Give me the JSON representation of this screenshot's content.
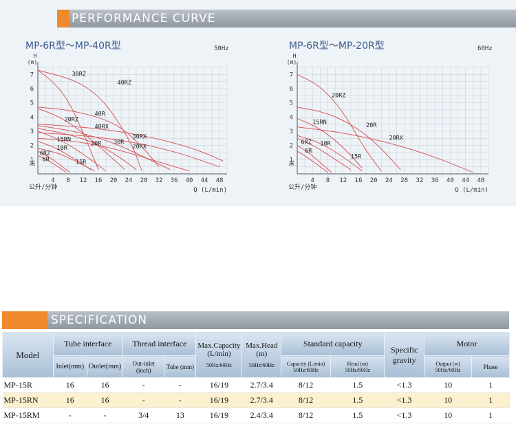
{
  "performance": {
    "title": "PERFORMANCE CURVE",
    "left_chart": {
      "title": "MP-6R型～MP-40R型",
      "hz": "50Hz",
      "y_axis_label_top": "H",
      "y_axis_label_unit": "(m)",
      "y_axis_label_side": "米",
      "x_axis_label_unit": "公升/分钟",
      "x_axis_label": "Q (L/min)",
      "y_ticks": [
        "1",
        "2",
        "3",
        "4",
        "5",
        "6",
        "7"
      ],
      "x_ticks": [
        "4",
        "8",
        "12",
        "16",
        "20",
        "24",
        "28",
        "32",
        "36",
        "40",
        "44",
        "48"
      ],
      "curve_labels": [
        "30RZ",
        "40RZ",
        "40R",
        "20RZ",
        "40RX",
        "15RN",
        "20R",
        "30R",
        "30RX",
        "10R",
        "20RX",
        "6RZ",
        "6R",
        "15R"
      ]
    },
    "right_chart": {
      "title": "MP-6R型～MP-20R型",
      "hz": "60Hz",
      "y_axis_label_top": "H",
      "y_axis_label_unit": "(m)",
      "y_axis_label_side": "米",
      "x_axis_label_unit": "公升/分钟",
      "x_axis_label": "Q (L/min)",
      "y_ticks": [
        "1",
        "2",
        "3",
        "4",
        "5",
        "6",
        "7"
      ],
      "x_ticks": [
        "4",
        "8",
        "12",
        "16",
        "20",
        "24",
        "28",
        "32",
        "36",
        "40",
        "44",
        "48"
      ],
      "curve_labels": [
        "20RZ",
        "15RN",
        "20R",
        "20RX",
        "6RZ",
        "10R",
        "6R",
        "15R"
      ]
    }
  },
  "chart_data": [
    {
      "type": "line",
      "title": "MP-6R型～MP-40R型",
      "hz": "50Hz",
      "xlabel": "Q (L/min)",
      "ylabel": "H (m)",
      "xlim": [
        0,
        50
      ],
      "ylim": [
        0,
        7.5
      ],
      "x_ticks": [
        4,
        8,
        12,
        16,
        20,
        24,
        28,
        32,
        36,
        40,
        44,
        48
      ],
      "y_ticks": [
        1,
        2,
        3,
        4,
        5,
        6,
        7
      ],
      "grid": true,
      "series": [
        {
          "name": "30RZ",
          "x": [
            0,
            4,
            8,
            12,
            16
          ],
          "y": [
            7.3,
            6.5,
            5.2,
            2.9,
            0.3
          ]
        },
        {
          "name": "40RZ",
          "x": [
            0,
            10,
            16,
            20,
            25,
            27.5
          ],
          "y": [
            7.3,
            6.6,
            5.5,
            4.2,
            2.0,
            0.2
          ]
        },
        {
          "name": "40R",
          "x": [
            0,
            8,
            16,
            22,
            28,
            32
          ],
          "y": [
            4.7,
            4.5,
            4.0,
            3.3,
            1.8,
            0.5
          ]
        },
        {
          "name": "20RZ",
          "x": [
            0,
            6,
            12,
            18,
            23
          ],
          "y": [
            4.6,
            4.0,
            2.9,
            1.5,
            0.3
          ]
        },
        {
          "name": "40RX",
          "x": [
            0,
            12,
            24,
            36,
            44,
            49
          ],
          "y": [
            3.5,
            3.3,
            2.9,
            2.2,
            1.5,
            0.9
          ]
        },
        {
          "name": "15RN",
          "x": [
            0,
            6,
            12,
            18
          ],
          "y": [
            3.0,
            2.4,
            1.4,
            0.2
          ]
        },
        {
          "name": "20R",
          "x": [
            0,
            8,
            16,
            22,
            26
          ],
          "y": [
            3.2,
            2.8,
            2.1,
            1.1,
            0.3
          ]
        },
        {
          "name": "30R",
          "x": [
            0,
            10,
            20,
            28,
            35
          ],
          "y": [
            3.4,
            3.0,
            2.2,
            1.2,
            0.3
          ]
        },
        {
          "name": "30RX",
          "x": [
            0,
            12,
            24,
            36,
            48
          ],
          "y": [
            2.9,
            2.7,
            2.3,
            1.6,
            0.5
          ]
        },
        {
          "name": "10R",
          "x": [
            0,
            5,
            10,
            14
          ],
          "y": [
            2.3,
            1.8,
            1.0,
            0.3
          ]
        },
        {
          "name": "20RX",
          "x": [
            0,
            10,
            20,
            30,
            40
          ],
          "y": [
            2.5,
            2.3,
            1.8,
            1.0,
            0.2
          ]
        },
        {
          "name": "6RZ",
          "x": [
            0,
            3,
            6,
            8.5
          ],
          "y": [
            1.6,
            1.2,
            0.6,
            0.1
          ]
        },
        {
          "name": "6R",
          "x": [
            0,
            3,
            6,
            7.5
          ],
          "y": [
            1.3,
            0.9,
            0.4,
            0.1
          ]
        },
        {
          "name": "15R",
          "x": [
            0,
            5,
            10,
            15
          ],
          "y": [
            1.8,
            1.5,
            0.9,
            0.2
          ]
        }
      ]
    },
    {
      "type": "line",
      "title": "MP-6R型～MP-20R型",
      "hz": "60Hz",
      "xlabel": "Q (L/min)",
      "ylabel": "H (m)",
      "xlim": [
        0,
        50
      ],
      "ylim": [
        0,
        7.5
      ],
      "x_ticks": [
        4,
        8,
        12,
        16,
        20,
        24,
        28,
        32,
        36,
        40,
        44,
        48
      ],
      "y_ticks": [
        1,
        2,
        3,
        4,
        5,
        6,
        7
      ],
      "grid": true,
      "series": [
        {
          "name": "20RZ",
          "x": [
            0,
            6,
            12,
            18,
            22
          ],
          "y": [
            7.0,
            6.2,
            4.4,
            1.6,
            0.2
          ]
        },
        {
          "name": "15RN",
          "x": [
            0,
            6,
            12,
            17
          ],
          "y": [
            3.9,
            3.2,
            1.9,
            0.4
          ]
        },
        {
          "name": "20R",
          "x": [
            0,
            8,
            16,
            22,
            27
          ],
          "y": [
            4.7,
            4.3,
            3.2,
            1.8,
            0.3
          ]
        },
        {
          "name": "20RX",
          "x": [
            0,
            12,
            24,
            36,
            46
          ],
          "y": [
            3.3,
            2.9,
            2.2,
            1.2,
            0.1
          ]
        },
        {
          "name": "6RZ",
          "x": [
            0,
            3,
            6,
            9
          ],
          "y": [
            2.0,
            1.5,
            0.8,
            0.1
          ]
        },
        {
          "name": "10R",
          "x": [
            0,
            5,
            10,
            14
          ],
          "y": [
            2.5,
            1.9,
            1.0,
            0.3
          ]
        },
        {
          "name": "6R",
          "x": [
            0,
            3,
            6,
            8
          ],
          "y": [
            1.6,
            1.1,
            0.5,
            0.1
          ]
        },
        {
          "name": "15R",
          "x": [
            0,
            6,
            12,
            17
          ],
          "y": [
            2.7,
            2.2,
            1.2,
            0.2
          ]
        }
      ]
    }
  ],
  "specification": {
    "title": "SPECIFICATION",
    "headers": {
      "model": "Model",
      "tube_interface": "Tube interface",
      "inlet": "Inlet(mm)",
      "outlet": "Outlet(mm)",
      "thread_interface": "Thread interface",
      "out_inlet": "Out-inlet (inch)",
      "tube": "Tube (mm)",
      "max_capacity": "Max.Capacity (L/min)",
      "max_capacity_sub": "50Hz/60Hz",
      "max_head": "Max.Head (m)",
      "max_head_sub": "50Hz/60Hz",
      "standard_capacity": "Standard capacity",
      "capacity": "Capacity (L/min) 50Hz/60Hz",
      "head": "Head (m) 50Hz/60Hz",
      "specific_gravity": "Specific gravity",
      "motor": "Motor",
      "output": "Output (w) 50Hz/60Hz",
      "phase": "Phase"
    },
    "rows": [
      [
        "MP-15R",
        "16",
        "16",
        "-",
        "-",
        "16/19",
        "2.7/3.4",
        "8/12",
        "1.5",
        "<1.3",
        "10",
        "1"
      ],
      [
        "MP-15RN",
        "16",
        "16",
        "-",
        "-",
        "16/19",
        "2.7/3.4",
        "8/12",
        "1.5",
        "<1.3",
        "10",
        "1"
      ],
      [
        "MP-15RM",
        "-",
        "-",
        "3/4",
        "13",
        "16/19",
        "2.4/3.4",
        "8/12",
        "1.5",
        "<1.3",
        "10",
        "1"
      ]
    ]
  },
  "colors": {
    "accent": "#f08a2c",
    "curve": "#d85b5b",
    "grid": "#c8ccd6",
    "table_header": "#b8cadd",
    "row_highlight": "#fbf1cf"
  }
}
